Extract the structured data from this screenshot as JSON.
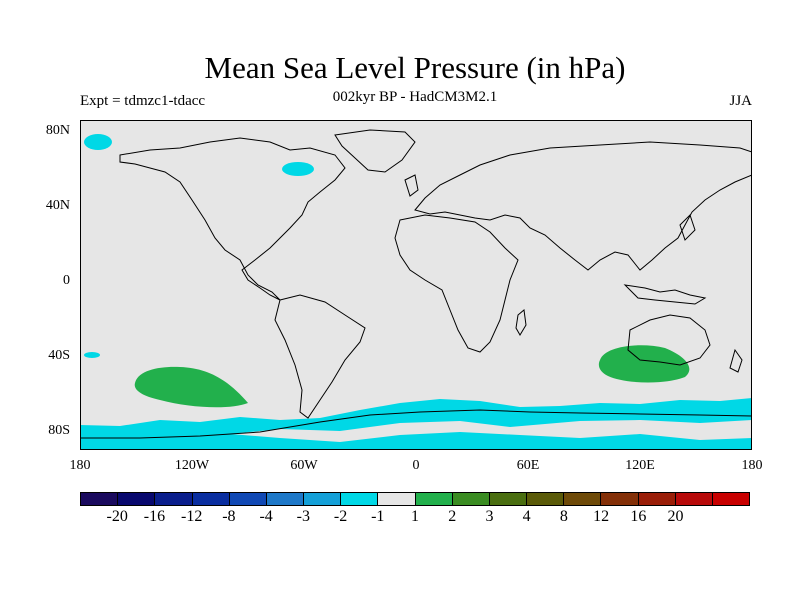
{
  "title": "Mean Sea Level Pressure (in hPa)",
  "subtitle": "002kyr BP - HadCM3M2.1",
  "experiment": "Expt = tdmzc1-tdacc",
  "season": "JJA",
  "map": {
    "projection": "equirectangular",
    "lon_range": [
      -180,
      180
    ],
    "lat_range": [
      -90,
      90
    ],
    "background_color": "#e6e6e6",
    "y_ticks": [
      "80N",
      "40N",
      "0",
      "40S",
      "80S"
    ],
    "x_ticks": [
      "180",
      "120W",
      "60W",
      "0",
      "60E",
      "120E",
      "180"
    ],
    "anomaly_regions": [
      {
        "name": "south-pacific-high",
        "category": "1 to 2",
        "color": "#22b04c",
        "center_lon": -125,
        "center_lat": -54
      },
      {
        "name": "southern-australia-high",
        "category": "1 to 2",
        "color": "#22b04c",
        "center_lon": 125,
        "center_lat": -45
      },
      {
        "name": "antarctic-low",
        "category": "-1 to -2",
        "color": "#00d8e6",
        "center_lon": 0,
        "center_lat": -78
      },
      {
        "name": "hudson-bay-low",
        "category": "-1 to -2",
        "color": "#00d8e6",
        "center_lon": -80,
        "center_lat": 58
      },
      {
        "name": "arctic-low",
        "category": "-1 to -2",
        "color": "#00d8e6",
        "center_lon": -170,
        "center_lat": 84
      }
    ]
  },
  "colorbar": {
    "labels": [
      "-20",
      "-16",
      "-12",
      "-8",
      "-4",
      "-3",
      "-2",
      "-1",
      "1",
      "2",
      "3",
      "4",
      "8",
      "12",
      "16",
      "20"
    ],
    "colors": [
      "#1a0a5e",
      "#08086e",
      "#0a1e8c",
      "#0a2ea0",
      "#1048b4",
      "#1e78c8",
      "#14a0d8",
      "#00d8e6",
      "#e6e6e6",
      "#22b04c",
      "#3a8c22",
      "#4a6e10",
      "#5a5a08",
      "#6e4a08",
      "#843008",
      "#9a1e08",
      "#b80a0a",
      "#c80000"
    ]
  }
}
